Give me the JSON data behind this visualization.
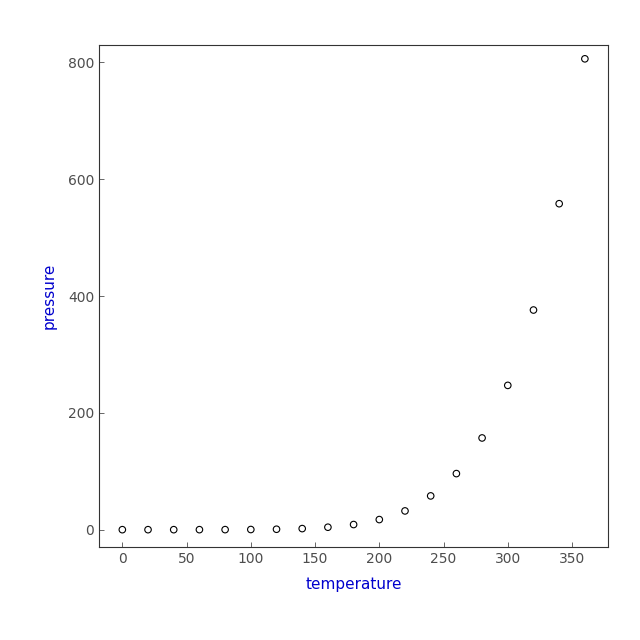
{
  "temperature": [
    0,
    20,
    40,
    60,
    80,
    100,
    120,
    140,
    160,
    180,
    200,
    220,
    240,
    260,
    280,
    300,
    320,
    340,
    360
  ],
  "pressure": [
    0.0002,
    0.0012,
    0.006,
    0.03,
    0.09,
    0.27,
    0.75,
    1.85,
    4.2,
    8.8,
    17.3,
    32.1,
    57.8,
    96.0,
    157.0,
    247.0,
    376.0,
    558.0,
    806.0
  ],
  "xlabel": "temperature",
  "ylabel": "pressure",
  "xlim": [
    -18,
    378
  ],
  "ylim": [
    -30,
    830
  ],
  "xticks": [
    0,
    50,
    100,
    150,
    200,
    250,
    300,
    350
  ],
  "yticks": [
    0,
    200,
    400,
    600,
    800
  ],
  "background_color": "#ffffff",
  "outer_background": "#ffffff",
  "marker_color": "#000000",
  "marker_size": 22,
  "label_color": "#0000cd",
  "tick_color": "#4d4d4d",
  "font_family": "sans-serif",
  "axis_label_fontsize": 11,
  "tick_label_fontsize": 10
}
